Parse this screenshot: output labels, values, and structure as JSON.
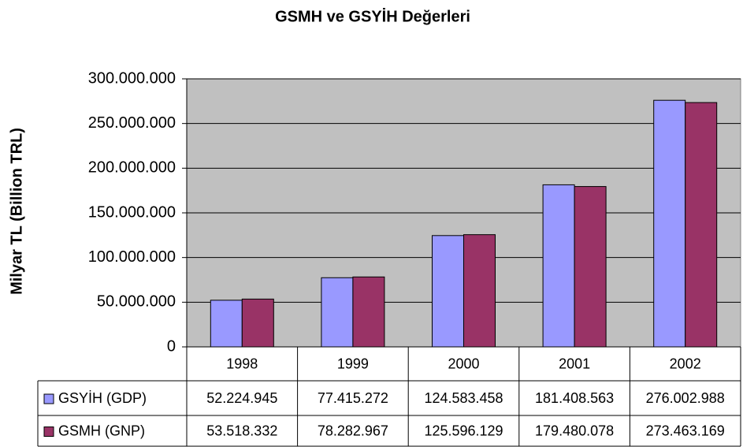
{
  "chart_data": {
    "type": "bar",
    "title": "GSMH ve GSYİH Değerleri",
    "y_label": "Milyar TL (Billion TRL)",
    "categories": [
      "1998",
      "1999",
      "2000",
      "2001",
      "2002"
    ],
    "series": [
      {
        "name": "GSYİH (GDP)",
        "color": "#9999ff",
        "values": [
          52224945,
          77415272,
          124583458,
          181408563,
          276002988
        ],
        "value_labels": [
          "52.224.945",
          "77.415.272",
          "124.583.458",
          "181.408.563",
          "276.002.988"
        ]
      },
      {
        "name": "GSMH (GNP)",
        "color": "#993366",
        "values": [
          53518332,
          78282967,
          125596129,
          179480078,
          273463169
        ],
        "value_labels": [
          "53.518.332",
          "78.282.967",
          "125.596.129",
          "179.480.078",
          "273.463.169"
        ]
      }
    ],
    "ylim": [
      0,
      300000000
    ],
    "yticks": [
      0,
      {
        "value": 50000000,
        "label": "50.000.000"
      },
      {
        "value": 100000000,
        "label": "100.000.000"
      },
      {
        "value": 150000000,
        "label": "150.000.000"
      },
      {
        "value": 200000000,
        "label": "200.000.000"
      },
      {
        "value": 250000000,
        "label": "250.000.000"
      },
      {
        "value": 300000000,
        "label": "300.000.000"
      }
    ],
    "grid": true,
    "plot_background": "#c0c0c0"
  }
}
